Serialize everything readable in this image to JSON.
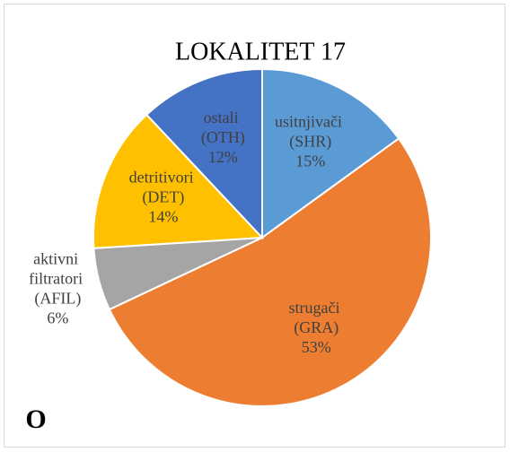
{
  "chart_data": {
    "type": "pie",
    "title": "LOKALITET 17",
    "categories": [
      "usitnjivači (SHR)",
      "strugači (GRA)",
      "aktivni filtratori (AFIL)",
      "detritivori (DET)",
      "ostali (OTH)"
    ],
    "values": [
      15,
      53,
      6,
      14,
      12
    ],
    "value_labels": [
      "15%",
      "53%",
      "6%",
      "14%",
      "12%"
    ],
    "colors": [
      "#5b9bd5",
      "#ed7d31",
      "#a5a5a5",
      "#ffc000",
      "#4472c4"
    ],
    "annotation": "O"
  }
}
